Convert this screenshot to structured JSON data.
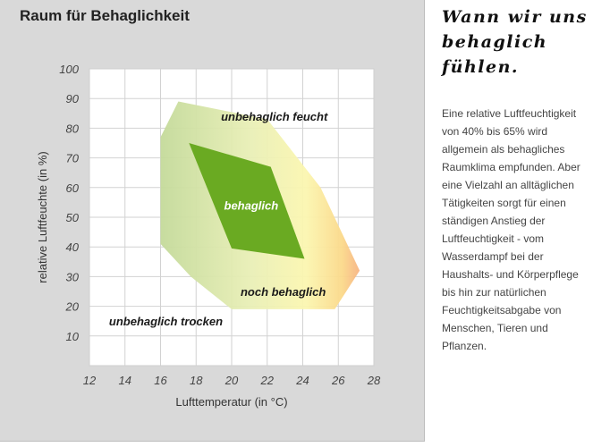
{
  "side": {
    "heading": "Wann wir uns behaglich fühlen.",
    "body": "Eine relative Luftfeuchtigkeit von 40% bis 65% wird allgemein als behagliches Raumklima empfunden. Aber eine Vielzahl an alltäglichen Tätigkeiten sorgt für einen ständigen Anstieg der Luftfeuchtigkeit - vom Wasserdampf bei der Haushalts- und Körperpflege bis hin zur natürlichen Feuchtigkeitsabgabe von Menschen, Tieren und Pflanzen."
  },
  "chart_data": {
    "type": "area",
    "title": "Raum für Behaglichkeit",
    "xlabel": "Lufttemperatur (in °C)",
    "ylabel": "relative Luftfeuchte (in %)",
    "xlim": [
      12,
      28
    ],
    "ylim": [
      0,
      100
    ],
    "x_ticks": [
      12,
      14,
      16,
      18,
      20,
      22,
      24,
      26,
      28
    ],
    "y_ticks": [
      10,
      20,
      30,
      40,
      50,
      60,
      70,
      80,
      90,
      100
    ],
    "grid": true,
    "regions": [
      {
        "name": "noch behaglich",
        "color": "#c7dc9a",
        "polygon": [
          [
            17,
            89
          ],
          [
            22,
            83
          ],
          [
            25,
            60
          ],
          [
            27.2,
            32
          ],
          [
            25.8,
            19
          ],
          [
            20,
            19
          ],
          [
            17.7,
            30
          ],
          [
            16,
            41
          ],
          [
            16,
            77
          ]
        ]
      },
      {
        "name": "behaglich",
        "color": "#6aaa22",
        "polygon": [
          [
            17.6,
            75
          ],
          [
            22.2,
            67
          ],
          [
            24.1,
            36
          ],
          [
            20,
            39.5
          ]
        ]
      }
    ],
    "annotations": [
      {
        "text": "unbehaglich feucht",
        "x": 22.4,
        "y": 84
      },
      {
        "text": "behaglich",
        "x": 21.1,
        "y": 54
      },
      {
        "text": "noch behaglich",
        "x": 22.9,
        "y": 25
      },
      {
        "text": "unbehaglich trocken",
        "x": 16.3,
        "y": 15
      }
    ]
  }
}
